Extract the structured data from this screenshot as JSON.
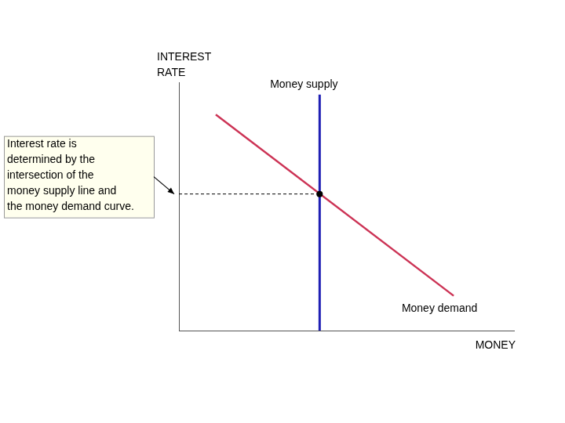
{
  "chart_data": {
    "type": "line",
    "x_label": "MONEY",
    "y_label": [
      "INTEREST",
      "RATE"
    ],
    "xlim": [
      0,
      100
    ],
    "ylim": [
      0,
      100
    ],
    "xticks": [],
    "yticks": [],
    "tick_labels": false,
    "grid": false,
    "series": [
      {
        "name": "Money supply",
        "color": "#1f1fb4",
        "x": [
          42,
          42
        ],
        "values": [
          0,
          95
        ]
      },
      {
        "name": "Money demand",
        "color": "#cc3355",
        "x": [
          11,
          82
        ],
        "values": [
          87,
          14
        ]
      }
    ],
    "equilibrium": {
      "x": 42,
      "y": 55,
      "marker": "circle",
      "line_style": "dashed",
      "color": "#000000"
    },
    "annotation": {
      "text": [
        "Interest rate is",
        "determined by the",
        "intersection of the",
        "money supply line and",
        "the money demand curve."
      ],
      "x": 0,
      "y": 55
    }
  }
}
